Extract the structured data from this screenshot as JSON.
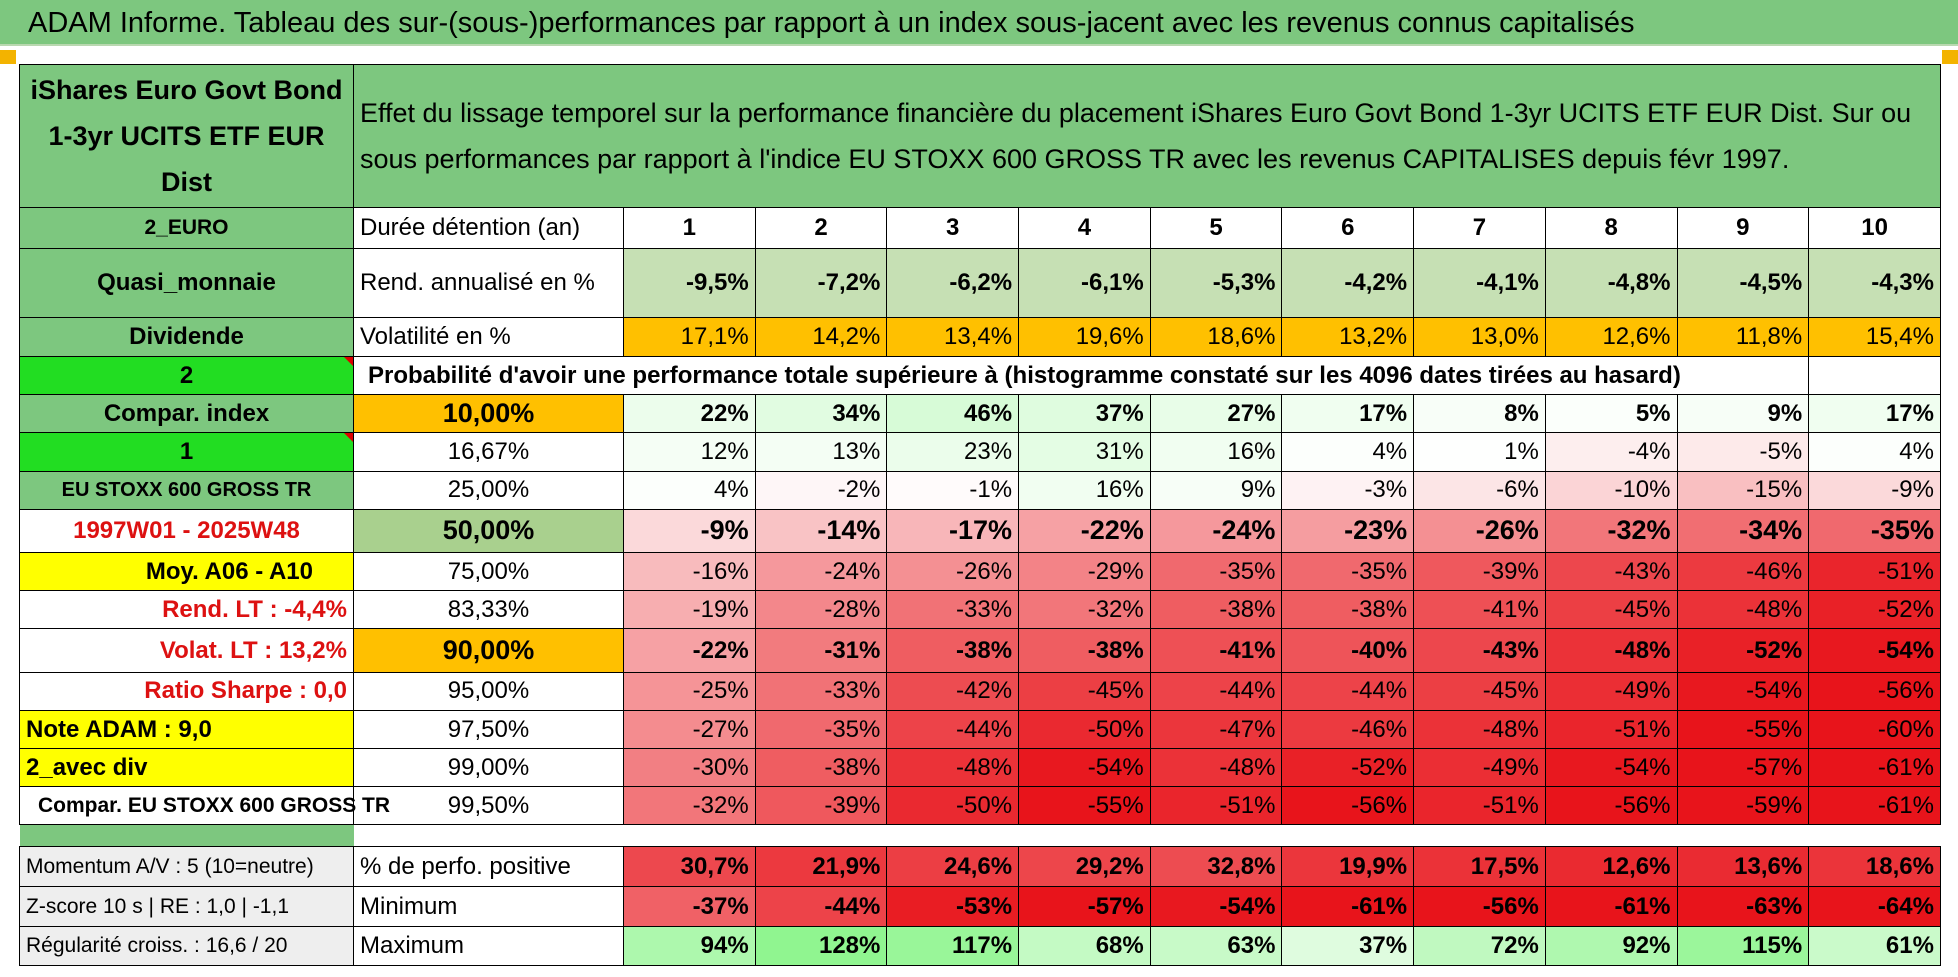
{
  "title": "ADAM Informe. Tableau des sur-(sous-)performances par rapport à un index sous-jacent avec les revenus connus capitalisés",
  "fund_name": "iShares Euro Govt Bond 1-3yr UCITS ETF EUR Dist",
  "description": "Effet du lissage temporel sur la performance financière du placement iShares Euro Govt Bond 1-3yr UCITS ETF EUR Dist. Sur ou sous performances par rapport à l'indice EU STOXX 600 GROSS TR avec les revenus CAPITALISES depuis févr 1997.",
  "holding_header": {
    "left": "2_EURO",
    "label": "Durée détention (an)",
    "years": [
      "1",
      "2",
      "3",
      "4",
      "5",
      "6",
      "7",
      "8",
      "9",
      "10"
    ]
  },
  "rend_row": {
    "left": "Quasi_monnaie",
    "label": "Rend. annualisé en %",
    "values": [
      "-9,5%",
      "-7,2%",
      "-6,2%",
      "-6,1%",
      "-5,3%",
      "-4,2%",
      "-4,1%",
      "-4,8%",
      "-4,5%",
      "-4,3%"
    ]
  },
  "vol_row": {
    "left": "Dividende",
    "label": "Volatilité en %",
    "values": [
      "17,1%",
      "14,2%",
      "13,4%",
      "19,6%",
      "18,6%",
      "13,2%",
      "13,0%",
      "12,6%",
      "11,8%",
      "15,4%"
    ]
  },
  "prob_row": {
    "left": "2",
    "text": "Probabilité d'avoir une performance totale supérieure à (histogramme constaté sur les 4096 dates tirées au hasard)"
  },
  "quantiles": [
    {
      "left": "Compar. index",
      "pct": "10,00%",
      "values": [
        "22%",
        "34%",
        "46%",
        "37%",
        "27%",
        "17%",
        "8%",
        "5%",
        "9%",
        "17%"
      ]
    },
    {
      "left": "1",
      "pct": "16,67%",
      "values": [
        "12%",
        "13%",
        "23%",
        "31%",
        "16%",
        "4%",
        "1%",
        "-4%",
        "-5%",
        "4%"
      ]
    },
    {
      "left": "EU STOXX 600 GROSS TR",
      "pct": "25,00%",
      "values": [
        "4%",
        "-2%",
        "-1%",
        "16%",
        "9%",
        "-3%",
        "-6%",
        "-10%",
        "-15%",
        "-9%"
      ]
    },
    {
      "left": "1997W01 - 2025W48",
      "pct": "50,00%",
      "values": [
        "-9%",
        "-14%",
        "-17%",
        "-22%",
        "-24%",
        "-23%",
        "-26%",
        "-32%",
        "-34%",
        "-35%"
      ]
    },
    {
      "left": "Moy. A06 - A10",
      "pct": "75,00%",
      "values": [
        "-16%",
        "-24%",
        "-26%",
        "-29%",
        "-35%",
        "-35%",
        "-39%",
        "-43%",
        "-46%",
        "-51%"
      ]
    },
    {
      "left": "Rend. LT :    -4,4%",
      "pct": "83,33%",
      "values": [
        "-19%",
        "-28%",
        "-33%",
        "-32%",
        "-38%",
        "-38%",
        "-41%",
        "-45%",
        "-48%",
        "-52%"
      ]
    },
    {
      "left": "Volat. LT :    13,2%",
      "pct": "90,00%",
      "values": [
        "-22%",
        "-31%",
        "-38%",
        "-38%",
        "-41%",
        "-40%",
        "-43%",
        "-48%",
        "-52%",
        "-54%"
      ]
    },
    {
      "left": "Ratio Sharpe :     0,0",
      "pct": "95,00%",
      "values": [
        "-25%",
        "-33%",
        "-42%",
        "-45%",
        "-44%",
        "-44%",
        "-45%",
        "-49%",
        "-54%",
        "-56%"
      ]
    },
    {
      "left": "Note ADAM : 9,0",
      "pct": "97,50%",
      "values": [
        "-27%",
        "-35%",
        "-44%",
        "-50%",
        "-47%",
        "-46%",
        "-48%",
        "-51%",
        "-55%",
        "-60%"
      ]
    },
    {
      "left": "2_avec div",
      "pct": "99,00%",
      "values": [
        "-30%",
        "-38%",
        "-48%",
        "-54%",
        "-48%",
        "-52%",
        "-49%",
        "-54%",
        "-57%",
        "-61%"
      ]
    },
    {
      "left": "Compar. EU STOXX 600 GROSS TR",
      "pct": "99,50%",
      "values": [
        "-32%",
        "-39%",
        "-50%",
        "-55%",
        "-51%",
        "-56%",
        "-51%",
        "-56%",
        "-59%",
        "-61%"
      ]
    }
  ],
  "stats": [
    {
      "left": "Momentum A/V : 5 (10=neutre)",
      "label": "% de perfo. positive",
      "values": [
        "30,7%",
        "21,9%",
        "24,6%",
        "29,2%",
        "32,8%",
        "19,9%",
        "17,5%",
        "12,6%",
        "13,6%",
        "18,6%"
      ]
    },
    {
      "left": "Z-score 10 s | RE : 1,0 | -1,1",
      "label": "Minimum",
      "values": [
        "-37%",
        "-44%",
        "-53%",
        "-57%",
        "-54%",
        "-61%",
        "-56%",
        "-61%",
        "-63%",
        "-64%"
      ]
    },
    {
      "left": "Régularité croiss. : 16,6 / 20",
      "label": "Maximum",
      "values": [
        "94%",
        "128%",
        "117%",
        "68%",
        "63%",
        "37%",
        "72%",
        "92%",
        "115%",
        "61%"
      ]
    }
  ],
  "colors": {
    "header_green": "#7dc77f",
    "orange": "#ffc000",
    "yellow": "#ffff00",
    "lime": "#22dd22",
    "negative_red": "#e8141b",
    "positive_green": "#8ef58e"
  }
}
